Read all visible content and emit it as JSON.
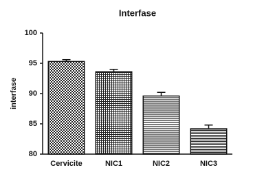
{
  "chart_data": {
    "type": "bar",
    "title": "Interfase",
    "y_label": "interfase",
    "categories": [
      "Cervicite",
      "NIC1",
      "NIC2",
      "NIC3"
    ],
    "values": [
      95.3,
      93.6,
      89.6,
      84.2
    ],
    "errors": [
      0.3,
      0.4,
      0.6,
      0.6
    ],
    "color": "#111111",
    "ylim": [
      80,
      100
    ],
    "yticks": [
      80,
      85,
      90,
      95,
      100
    ],
    "grid": false
  }
}
